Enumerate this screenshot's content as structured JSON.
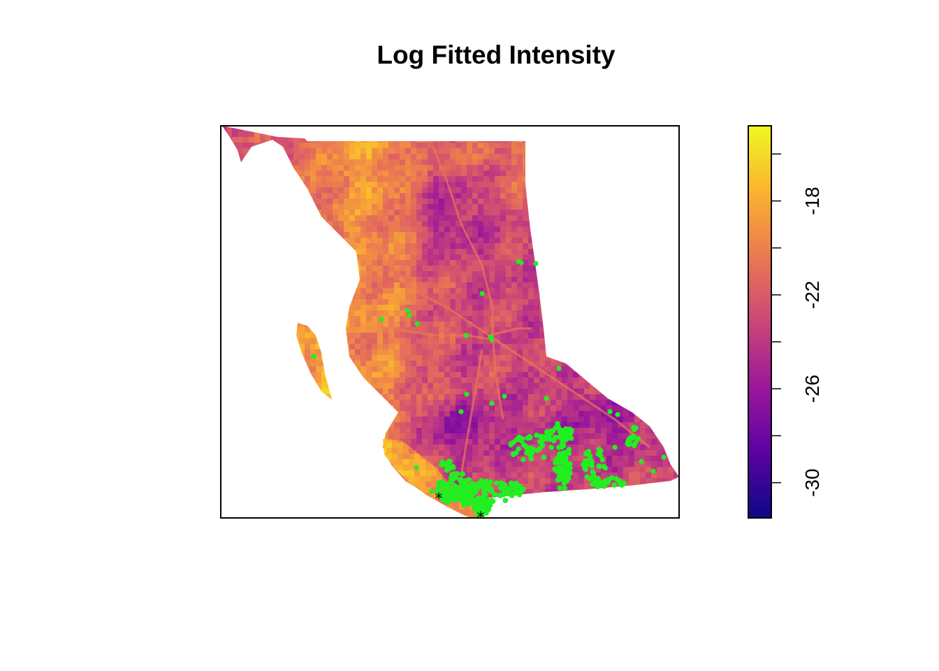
{
  "chart_data": {
    "type": "heatmap",
    "title": "Log Fitted Intensity",
    "xlabel": "",
    "ylabel": "",
    "colorbar": {
      "palette": "plasma",
      "range": [
        -31.5,
        -14.8
      ],
      "ticks": [
        -30,
        -26,
        -22,
        -18
      ],
      "tick_labels": [
        "-30",
        "-26",
        "-22",
        "-18"
      ],
      "colors": [
        "#0d0887",
        "#5b02a3",
        "#9a179b",
        "#cb4678",
        "#eb7852",
        "#fbb32f",
        "#eff821"
      ]
    },
    "overlay_points": {
      "color": "#22ee22",
      "description": "",
      "approx_count": 600
    },
    "axes_shown": false,
    "grid": false,
    "legend_position": "right"
  }
}
